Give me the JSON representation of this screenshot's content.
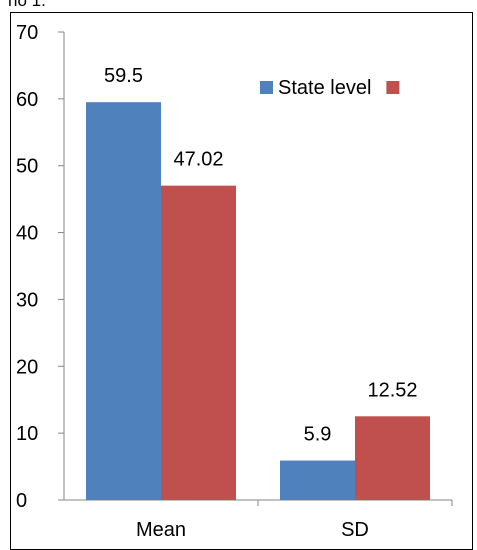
{
  "header_fragment": "no 1.",
  "chart_data": {
    "type": "bar",
    "categories": [
      "Mean",
      "SD"
    ],
    "series": [
      {
        "name": "State level",
        "values": [
          59.5,
          5.9
        ],
        "labels": [
          "59.5",
          "5.9"
        ],
        "color": "#4F81BD"
      },
      {
        "name": "",
        "values": [
          47.02,
          12.52
        ],
        "labels": [
          "47.02",
          "12.52"
        ],
        "color": "#C0504D"
      }
    ],
    "ylim": [
      0,
      70
    ],
    "yticks": [
      "0",
      "10",
      "20",
      "30",
      "40",
      "50",
      "60",
      "70"
    ],
    "grid": false,
    "legend_position": "top-right",
    "title": "",
    "xlabel": "",
    "ylabel": ""
  }
}
